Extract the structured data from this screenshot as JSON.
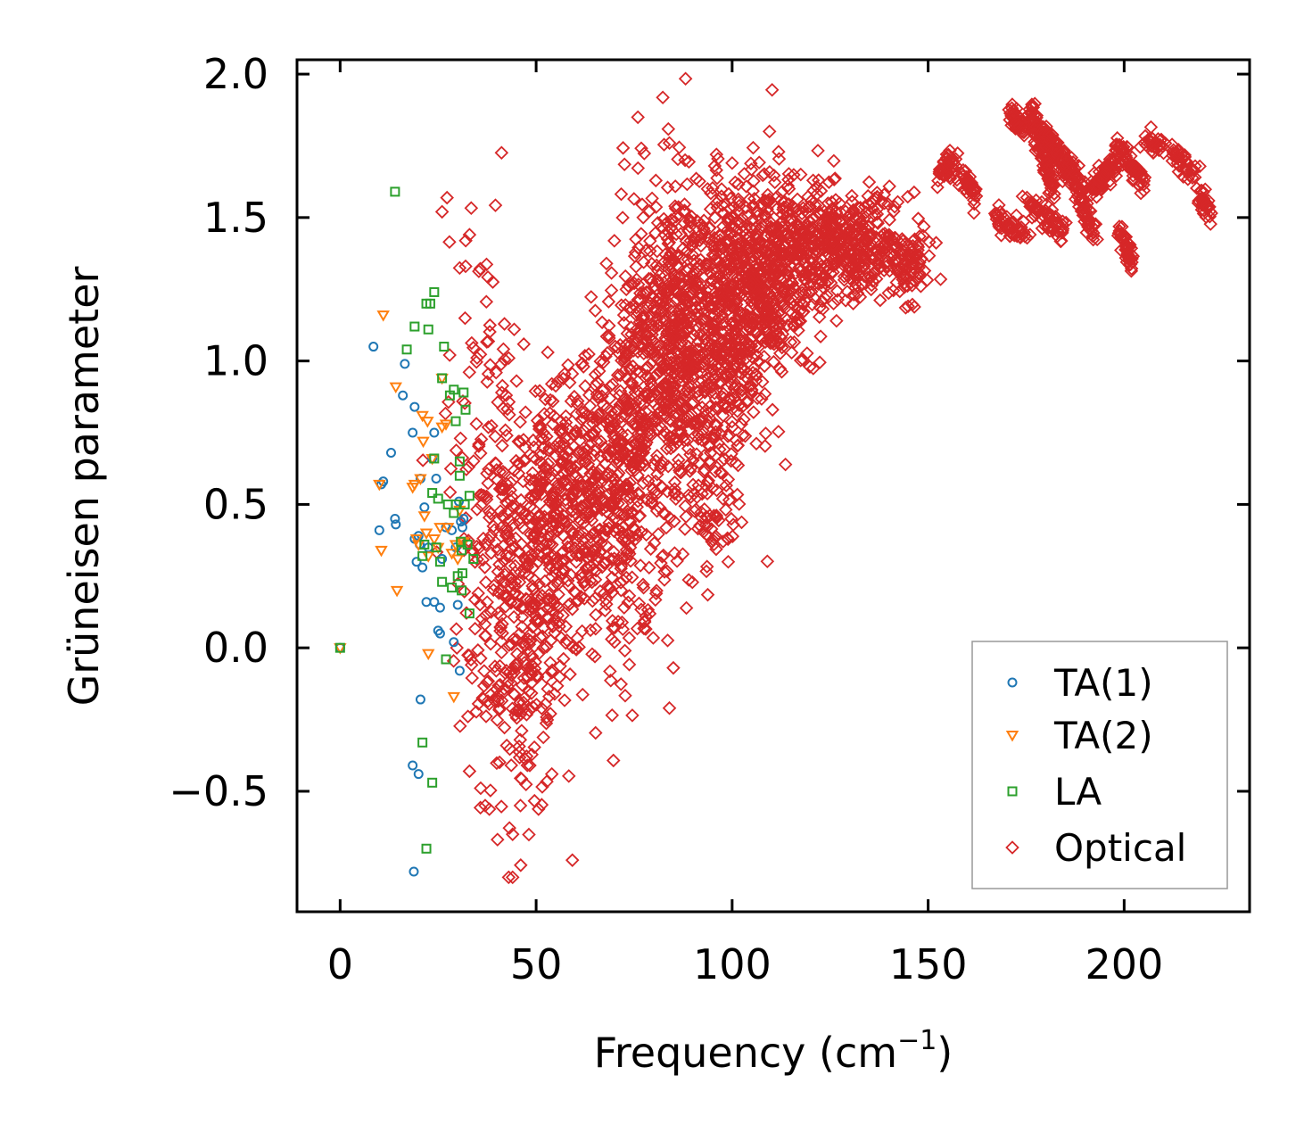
{
  "chart_data": {
    "type": "scatter",
    "title": "",
    "xlabel_main": "Frequency (cm",
    "xlabel_sup": "−1",
    "xlabel_end": ")",
    "ylabel": "Grüneisen parameter",
    "xlim": [
      -11,
      232
    ],
    "ylim": [
      -0.92,
      2.05
    ],
    "xticks": [
      0,
      50,
      100,
      150,
      200
    ],
    "xtick_labels": [
      "0",
      "50",
      "100",
      "150",
      "200"
    ],
    "yticks": [
      -0.5,
      0.0,
      0.5,
      1.0,
      1.5,
      2.0
    ],
    "ytick_labels": [
      "−0.5",
      "0.0",
      "0.5",
      "1.0",
      "1.5",
      "2.0"
    ],
    "legend_position": "lower-right",
    "series": [
      {
        "name": "TA(1)",
        "marker": "circle",
        "color": "#1f77b4",
        "points": [
          [
            0,
            0
          ],
          [
            8.5,
            1.05
          ],
          [
            10.5,
            0.57
          ],
          [
            11,
            0.58
          ],
          [
            10,
            0.41
          ],
          [
            13,
            0.68
          ],
          [
            14,
            0.45
          ],
          [
            14.2,
            0.43
          ],
          [
            16,
            0.88
          ],
          [
            16.5,
            0.99
          ],
          [
            18.5,
            0.75
          ],
          [
            19,
            0.84
          ],
          [
            19.5,
            0.3
          ],
          [
            19,
            0.38
          ],
          [
            20,
            0.39
          ],
          [
            20.3,
            0.36
          ],
          [
            20.5,
            0.59
          ],
          [
            21,
            0.28
          ],
          [
            21.5,
            0.49
          ],
          [
            20.5,
            -0.18
          ],
          [
            20,
            -0.44
          ],
          [
            18.5,
            -0.41
          ],
          [
            18.8,
            -0.78
          ],
          [
            22,
            0.16
          ],
          [
            22.5,
            0.35
          ],
          [
            23.5,
            0.66
          ],
          [
            24,
            0.75
          ],
          [
            24.5,
            0.59
          ],
          [
            24,
            0.16
          ],
          [
            25,
            0.06
          ],
          [
            25.5,
            0.05
          ],
          [
            25.5,
            0.14
          ],
          [
            26,
            0.31
          ],
          [
            27,
            0.42
          ],
          [
            28.5,
            0.41
          ],
          [
            29,
            0.02
          ],
          [
            29.5,
            0.35
          ],
          [
            30,
            0.15
          ],
          [
            30.3,
            0.51
          ],
          [
            30.8,
            0.44
          ],
          [
            31.2,
            0.42
          ],
          [
            31.5,
            0.45
          ],
          [
            30.5,
            -0.08
          ]
        ]
      },
      {
        "name": "TA(2)",
        "marker": "triangle-down",
        "color": "#ff7f0e",
        "points": [
          [
            0,
            0
          ],
          [
            10,
            0.57
          ],
          [
            10.5,
            0.34
          ],
          [
            11,
            1.16
          ],
          [
            14.2,
            0.91
          ],
          [
            14.5,
            0.2
          ],
          [
            18.5,
            0.56
          ],
          [
            19,
            0.57
          ],
          [
            19.5,
            0.38
          ],
          [
            20,
            0.36
          ],
          [
            20.5,
            0.59
          ],
          [
            21,
            0.81
          ],
          [
            21.2,
            0.72
          ],
          [
            21.5,
            0.46
          ],
          [
            22,
            0.4
          ],
          [
            22.3,
            0.79
          ],
          [
            22.5,
            0.32
          ],
          [
            22.5,
            -0.02
          ],
          [
            23.5,
            0.66
          ],
          [
            24,
            0.38
          ],
          [
            25,
            0.35
          ],
          [
            25.5,
            0.42
          ],
          [
            26,
            0.77
          ],
          [
            26,
            0.94
          ],
          [
            27,
            0.78
          ],
          [
            27.5,
            0.42
          ],
          [
            28.5,
            0.33
          ],
          [
            29.5,
            0.36
          ],
          [
            29,
            -0.17
          ],
          [
            30,
            0.31
          ],
          [
            30.5,
            0.48
          ],
          [
            31,
            0.37
          ],
          [
            31.5,
            0.37
          ]
        ]
      },
      {
        "name": "LA",
        "marker": "square",
        "color": "#2ca02c",
        "points": [
          [
            0,
            0
          ],
          [
            14,
            1.59
          ],
          [
            17,
            1.04
          ],
          [
            19,
            1.12
          ],
          [
            21,
            0.32
          ],
          [
            21.5,
            0.36
          ],
          [
            21,
            -0.33
          ],
          [
            22,
            -0.7
          ],
          [
            22,
            1.2
          ],
          [
            22.5,
            1.11
          ],
          [
            23,
            1.2
          ],
          [
            23.5,
            -0.47
          ],
          [
            23.5,
            0.54
          ],
          [
            24,
            1.24
          ],
          [
            24,
            0.66
          ],
          [
            24.5,
            0.35
          ],
          [
            25,
            0.52
          ],
          [
            25.5,
            0.3
          ],
          [
            26,
            0.23
          ],
          [
            26,
            0.94
          ],
          [
            26.5,
            1.05
          ],
          [
            27,
            -0.04
          ],
          [
            27.5,
            0.5
          ],
          [
            28,
            0.88
          ],
          [
            28.5,
            0.21
          ],
          [
            29,
            0.47
          ],
          [
            29,
            0.9
          ],
          [
            29.5,
            0.79
          ],
          [
            29.5,
            0.5
          ],
          [
            30,
            0.25
          ],
          [
            30.5,
            0.6
          ],
          [
            30.5,
            0.65
          ],
          [
            30.8,
            0.37
          ],
          [
            31,
            0.2
          ],
          [
            31.2,
            0.26
          ],
          [
            31.5,
            0.89
          ],
          [
            31.8,
            0.5
          ],
          [
            32,
            0.83
          ],
          [
            32.5,
            0.36
          ],
          [
            33,
            0.53
          ],
          [
            33,
            0.12
          ],
          [
            34,
            0.31
          ],
          [
            31,
            0.34
          ]
        ]
      },
      {
        "name": "Optical",
        "marker": "diamond",
        "color": "#d62728",
        "clusters": [
          {
            "x": 42,
            "y": 0.25,
            "sx": 6,
            "sy": 0.35,
            "n": 250
          },
          {
            "x": 48,
            "y": -0.1,
            "sx": 5,
            "sy": 0.25,
            "n": 120
          },
          {
            "x": 55,
            "y": 0.4,
            "sx": 6,
            "sy": 0.22,
            "n": 250
          },
          {
            "x": 63,
            "y": 0.55,
            "sx": 6,
            "sy": 0.25,
            "n": 250
          },
          {
            "x": 72,
            "y": 0.55,
            "sx": 5,
            "sy": 0.3,
            "n": 200
          },
          {
            "x": 78,
            "y": 0.9,
            "sx": 5,
            "sy": 0.35,
            "n": 250
          },
          {
            "x": 85,
            "y": 1.1,
            "sx": 5,
            "sy": 0.25,
            "n": 300
          },
          {
            "x": 92,
            "y": 0.95,
            "sx": 6,
            "sy": 0.3,
            "n": 300
          },
          {
            "x": 100,
            "y": 1.2,
            "sx": 6,
            "sy": 0.22,
            "n": 350
          },
          {
            "x": 108,
            "y": 1.3,
            "sx": 6,
            "sy": 0.18,
            "n": 300
          },
          {
            "x": 117,
            "y": 1.38,
            "sx": 6,
            "sy": 0.13,
            "n": 250
          },
          {
            "x": 128,
            "y": 1.4,
            "sx": 5,
            "sy": 0.09,
            "n": 180
          },
          {
            "x": 137,
            "y": 1.42,
            "sx": 4,
            "sy": 0.08,
            "n": 120
          },
          {
            "x": 145,
            "y": 1.33,
            "sx": 3,
            "sy": 0.06,
            "n": 80
          },
          {
            "x": 95,
            "y": 0.45,
            "sx": 3,
            "sy": 0.1,
            "n": 40
          },
          {
            "x": 36,
            "y": 0.9,
            "sx": 5,
            "sy": 0.35,
            "n": 60
          }
        ],
        "segments": [
          {
            "x0": 153,
            "y0": 1.65,
            "x1": 157,
            "y1": 1.7,
            "n": 40
          },
          {
            "x0": 159,
            "y0": 1.65,
            "x1": 162,
            "y1": 1.57,
            "n": 40
          },
          {
            "x0": 167,
            "y0": 1.5,
            "x1": 175,
            "y1": 1.43,
            "n": 50
          },
          {
            "x0": 171,
            "y0": 1.87,
            "x1": 174,
            "y1": 1.8,
            "n": 40
          },
          {
            "x0": 175,
            "y0": 1.55,
            "x1": 185,
            "y1": 1.45,
            "n": 60
          },
          {
            "x0": 176,
            "y0": 1.88,
            "x1": 182,
            "y1": 1.6,
            "n": 120
          },
          {
            "x0": 180,
            "y0": 1.8,
            "x1": 186,
            "y1": 1.65,
            "n": 80
          },
          {
            "x0": 186,
            "y0": 1.7,
            "x1": 192,
            "y1": 1.45,
            "n": 90
          },
          {
            "x0": 192,
            "y0": 1.6,
            "x1": 198,
            "y1": 1.7,
            "n": 80
          },
          {
            "x0": 198,
            "y0": 1.75,
            "x1": 205,
            "y1": 1.62,
            "n": 60
          },
          {
            "x0": 199,
            "y0": 1.45,
            "x1": 202,
            "y1": 1.34,
            "n": 40
          },
          {
            "x0": 205,
            "y0": 1.77,
            "x1": 210,
            "y1": 1.74,
            "n": 30
          },
          {
            "x0": 212,
            "y0": 1.73,
            "x1": 218,
            "y1": 1.65,
            "n": 40
          },
          {
            "x0": 219,
            "y0": 1.58,
            "x1": 222,
            "y1": 1.52,
            "n": 30
          }
        ],
        "outliers": [
          [
            26,
            1.52
          ],
          [
            33,
            1.44
          ],
          [
            32,
            1.33
          ],
          [
            43,
            1.01
          ],
          [
            45,
            0.93
          ],
          [
            54,
            0.92
          ],
          [
            84,
            1.76
          ],
          [
            88,
            1.7
          ],
          [
            96,
            1.72
          ],
          [
            100,
            1.69
          ],
          [
            99,
            0.3
          ],
          [
            84,
            -0.21
          ],
          [
            43,
            -0.8
          ],
          [
            44,
            -0.65
          ],
          [
            46,
            -0.55
          ],
          [
            54,
            -0.44
          ],
          [
            65,
            -0.03
          ],
          [
            70,
            0.02
          ],
          [
            78,
            0.11
          ],
          [
            85,
            -0.07
          ],
          [
            33,
            -0.43
          ],
          [
            37,
            -0.55
          ],
          [
            44,
            -0.8
          ]
        ]
      }
    ]
  }
}
